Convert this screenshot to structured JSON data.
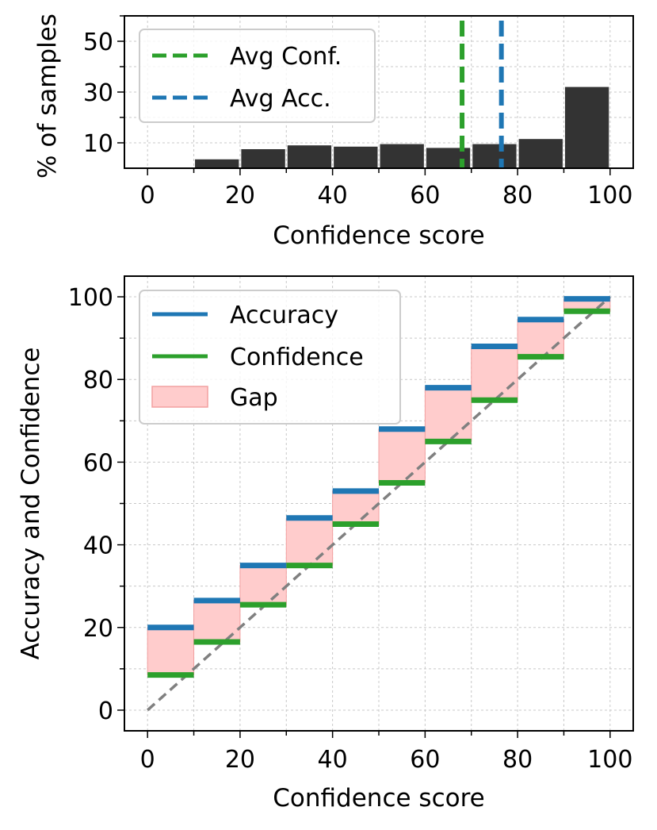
{
  "chart_data": [
    {
      "type": "bar",
      "id": "histogram",
      "xlabel": "Confidence score",
      "ylabel": "% of samples",
      "xlim": [
        -5,
        105
      ],
      "ylim": [
        0,
        60
      ],
      "xticks": [
        0,
        20,
        40,
        60,
        80,
        100
      ],
      "yticks": [
        10,
        30,
        50
      ],
      "grid": true,
      "bin_edges": [
        0,
        10,
        20,
        30,
        40,
        50,
        60,
        70,
        80,
        90,
        100
      ],
      "values": [
        0,
        3.5,
        7.5,
        9,
        8.5,
        9.5,
        8,
        9.5,
        11.5,
        32
      ],
      "bar_color": "#333333",
      "avg_conf": 68,
      "avg_acc": 76.5,
      "avg_conf_color": "#2ca02c",
      "avg_acc_color": "#1f77b4",
      "legend": [
        "Avg Conf.",
        "Avg Acc."
      ],
      "legend_position": "upper-left"
    },
    {
      "type": "step",
      "id": "reliability",
      "xlabel": "Confidence score",
      "ylabel": "Accuracy and Confidence",
      "xlim": [
        -5,
        105
      ],
      "ylim": [
        -5,
        105
      ],
      "xticks": [
        0,
        20,
        40,
        60,
        80,
        100
      ],
      "yticks": [
        0,
        20,
        40,
        60,
        80,
        100
      ],
      "grid": true,
      "bin_edges": [
        0,
        10,
        20,
        30,
        40,
        50,
        60,
        70,
        80,
        90,
        100
      ],
      "accuracy": [
        20,
        26.5,
        35,
        46.5,
        53,
        68,
        78,
        88,
        94.5,
        99.5
      ],
      "confidence": [
        8.5,
        16.5,
        25.5,
        35,
        45,
        55,
        65,
        75,
        85.5,
        96.5
      ],
      "accuracy_color": "#1f77b4",
      "confidence_color": "#2ca02c",
      "gap_color": "#ffcccc",
      "diagonal_color": "#808080",
      "legend": [
        "Accuracy",
        "Confidence",
        "Gap"
      ],
      "legend_position": "upper-left"
    }
  ]
}
